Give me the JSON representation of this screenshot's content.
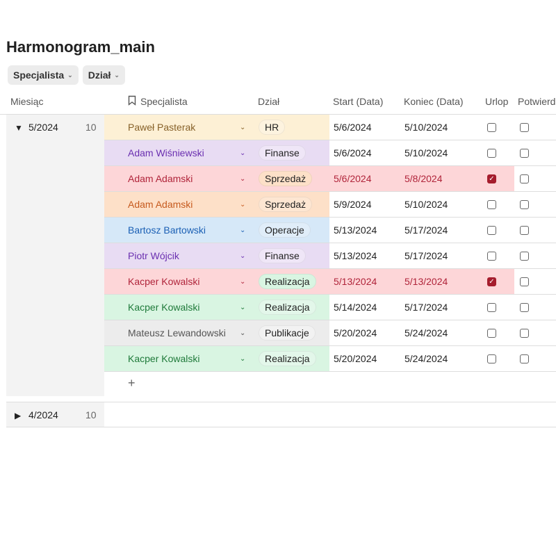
{
  "title": "Harmonogram_main",
  "filters": [
    {
      "label": "Specjalista"
    },
    {
      "label": "Dział"
    }
  ],
  "columns": [
    "Miesiąc",
    "Specjalista",
    "Dział",
    "Start (Data)",
    "Koniec (Data)",
    "Urlop",
    "Potwierdz"
  ],
  "groups": [
    {
      "label": "5/2024",
      "count": "10",
      "expanded": true
    },
    {
      "label": "4/2024",
      "count": "10",
      "expanded": false
    }
  ],
  "rows": [
    {
      "name": "Paweł Pasterak",
      "dept": "HR",
      "start": "5/6/2024",
      "end": "5/10/2024",
      "urlop": false,
      "confirmed": false,
      "bg": "#fdf0d5",
      "fg": "#876129",
      "pill": "#fdf3df"
    },
    {
      "name": "Adam Wiśniewski",
      "dept": "Finanse",
      "start": "5/6/2024",
      "end": "5/10/2024",
      "urlop": false,
      "confirmed": false,
      "bg": "#e8dcf3",
      "fg": "#6a2fb0",
      "pill": "#efe6f7"
    },
    {
      "name": "Adam Adamski",
      "dept": "Sprzedaż",
      "start": "5/6/2024",
      "end": "5/8/2024",
      "urlop": true,
      "confirmed": false,
      "bg": "#fdd6d8",
      "fg": "#b0243a",
      "pill": "#fde0c8"
    },
    {
      "name": "Adam Adamski",
      "dept": "Sprzedaż",
      "start": "5/9/2024",
      "end": "5/10/2024",
      "urlop": false,
      "confirmed": false,
      "bg": "#fde0c8",
      "fg": "#c65a1e",
      "pill": "#fde6d2"
    },
    {
      "name": "Bartosz Bartowski",
      "dept": "Operacje",
      "start": "5/13/2024",
      "end": "5/17/2024",
      "urlop": false,
      "confirmed": false,
      "bg": "#d6e8f8",
      "fg": "#1a5fb4",
      "pill": "#e0edf9"
    },
    {
      "name": "Piotr Wójcik",
      "dept": "Finanse",
      "start": "5/13/2024",
      "end": "5/17/2024",
      "urlop": false,
      "confirmed": false,
      "bg": "#e8dcf3",
      "fg": "#6a2fb0",
      "pill": "#efe6f7"
    },
    {
      "name": "Kacper Kowalski",
      "dept": "Realizacja",
      "start": "5/13/2024",
      "end": "5/13/2024",
      "urlop": true,
      "confirmed": false,
      "bg": "#fdd6d8",
      "fg": "#b0243a",
      "pill": "#d9f5e2"
    },
    {
      "name": "Kacper Kowalski",
      "dept": "Realizacja",
      "start": "5/14/2024",
      "end": "5/17/2024",
      "urlop": false,
      "confirmed": false,
      "bg": "#d9f5e2",
      "fg": "#1f7a3a",
      "pill": "#e3f7ea"
    },
    {
      "name": "Mateusz Lewandowski",
      "dept": "Publikacje",
      "start": "5/20/2024",
      "end": "5/24/2024",
      "urlop": false,
      "confirmed": false,
      "bg": "#ececec",
      "fg": "#555555",
      "pill": "#f2f2f2"
    },
    {
      "name": "Kacper Kowalski",
      "dept": "Realizacja",
      "start": "5/20/2024",
      "end": "5/24/2024",
      "urlop": false,
      "confirmed": false,
      "bg": "#d9f5e2",
      "fg": "#1f7a3a",
      "pill": "#e3f7ea"
    }
  ],
  "add_label": "+"
}
